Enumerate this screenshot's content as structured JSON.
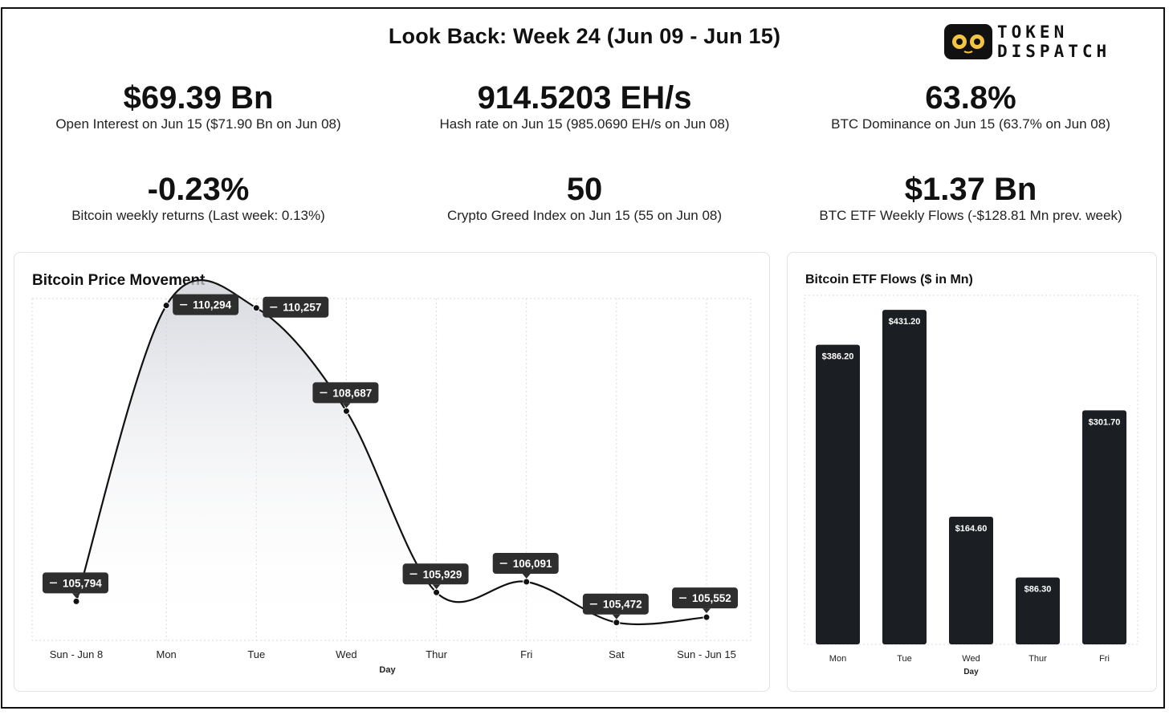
{
  "header": {
    "title": "Look Back: Week 24 (Jun 09 - Jun 15)",
    "logo_line1": "TOKEN",
    "logo_line2": "DISPATCH"
  },
  "stats": [
    {
      "value": "$69.39 Bn",
      "label": "Open Interest on Jun 15 ($71.90 Bn on Jun 08)"
    },
    {
      "value": "914.5203 EH/s",
      "label": "Hash rate on Jun 15 (985.0690 EH/s on Jun 08)"
    },
    {
      "value": "63.8%",
      "label": "BTC Dominance on Jun 15 (63.7% on Jun 08)"
    },
    {
      "value": "-0.23%",
      "label": "Bitcoin weekly returns (Last week: 0.13%)"
    },
    {
      "value": "50",
      "label": "Crypto Greed Index on Jun 15 (55 on Jun 08)"
    },
    {
      "value": "$1.37 Bn",
      "label": "BTC ETF Weekly Flows (-$128.81 Mn prev. week)"
    }
  ],
  "colors": {
    "dark": "#1b1e22",
    "label_bg": "#2e2e2e",
    "grid": "#d9d9dd",
    "text": "#111111"
  },
  "chart_data": [
    {
      "type": "line",
      "title": "Bitcoin Price Movement",
      "xlabel": "Day",
      "ylabel": "",
      "categories": [
        "Sun - Jun 8",
        "Mon",
        "Tue",
        "Wed",
        "Thur",
        "Fri",
        "Sat",
        "Sun - Jun 15"
      ],
      "values": [
        105794,
        110294,
        110257,
        108687,
        105929,
        106091,
        105472,
        105552
      ],
      "labels": [
        "105,794",
        "110,294",
        "110,257",
        "108,687",
        "105,929",
        "106,091",
        "105,472",
        "105,552"
      ],
      "ylim": [
        105200,
        110400
      ],
      "grid": true,
      "area_fill": true
    },
    {
      "type": "bar",
      "title": "Bitcoin ETF Flows ($ in Mn)",
      "xlabel": "Day",
      "ylabel": "",
      "categories": [
        "Mon",
        "Tue",
        "Wed",
        "Thur",
        "Fri"
      ],
      "values": [
        386.2,
        431.2,
        164.6,
        86.3,
        301.7
      ],
      "labels": [
        "$386.20",
        "$431.20",
        "$164.60",
        "$86.30",
        "$301.70"
      ],
      "ylim": [
        0,
        450
      ],
      "grid": true
    }
  ]
}
